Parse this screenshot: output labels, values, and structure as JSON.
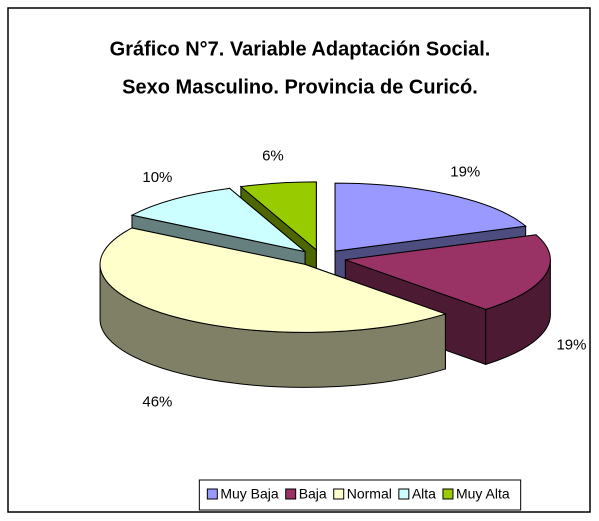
{
  "chart_data": {
    "type": "pie3d",
    "title": [
      "Gráfico N°7. Variable Adaptación Social.",
      "Sexo Masculino. Provincia de Curicó."
    ],
    "categories": [
      "Muy Baja",
      "Baja",
      "Normal",
      "Alta",
      "Muy Alta"
    ],
    "values": [
      19,
      19,
      46,
      10,
      6
    ],
    "value_labels": [
      "19%",
      "19%",
      "46%",
      "10%",
      "6%"
    ],
    "colors": [
      "#9999ff",
      "#993366",
      "#ffffcc",
      "#ccffff",
      "#99cc00"
    ],
    "legend": "bottom"
  }
}
